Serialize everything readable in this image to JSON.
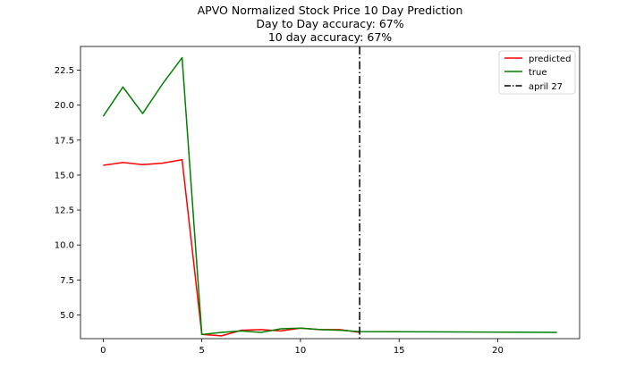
{
  "chart_data": {
    "type": "line",
    "title": [
      "APVO Normalized Stock Price 10 Day Prediction",
      "Day to Day accuracy: 67%",
      "10 day accuracy: 67%"
    ],
    "xlabel": "",
    "ylabel": "",
    "xlim": [
      -1.15,
      24.15
    ],
    "ylim": [
      3.3,
      24.2
    ],
    "xticks": [
      0,
      5,
      10,
      15,
      20
    ],
    "yticks": [
      5.0,
      7.5,
      10.0,
      12.5,
      15.0,
      17.5,
      20.0,
      22.5
    ],
    "xtick_labels": [
      "0",
      "5",
      "10",
      "15",
      "20"
    ],
    "ytick_labels": [
      "5.0",
      "7.5",
      "10.0",
      "12.5",
      "15.0",
      "17.5",
      "20.0",
      "22.5"
    ],
    "series": [
      {
        "name": "predicted",
        "color": "#ff0000",
        "x": [
          0,
          1,
          2,
          3,
          4,
          5,
          6,
          7,
          8,
          9,
          10,
          11,
          12,
          13
        ],
        "y": [
          15.7,
          15.9,
          15.75,
          15.85,
          16.1,
          3.6,
          3.5,
          3.9,
          3.95,
          3.85,
          4.05,
          3.95,
          3.95,
          3.75
        ]
      },
      {
        "name": "true",
        "color": "#008000",
        "x": [
          0,
          1,
          2,
          3,
          4,
          5,
          6,
          7,
          8,
          9,
          10,
          11,
          12,
          13,
          23
        ],
        "y": [
          19.2,
          21.3,
          19.4,
          21.5,
          23.4,
          3.6,
          3.75,
          3.85,
          3.75,
          4.0,
          4.05,
          3.95,
          3.9,
          3.8,
          3.75
        ]
      }
    ],
    "vline": {
      "x": 13,
      "name": "april 27",
      "color": "#000000",
      "style": "dashdot"
    },
    "legend": {
      "placement": "top-right",
      "entries": [
        "predicted",
        "true",
        "april 27"
      ]
    },
    "grid": false
  }
}
